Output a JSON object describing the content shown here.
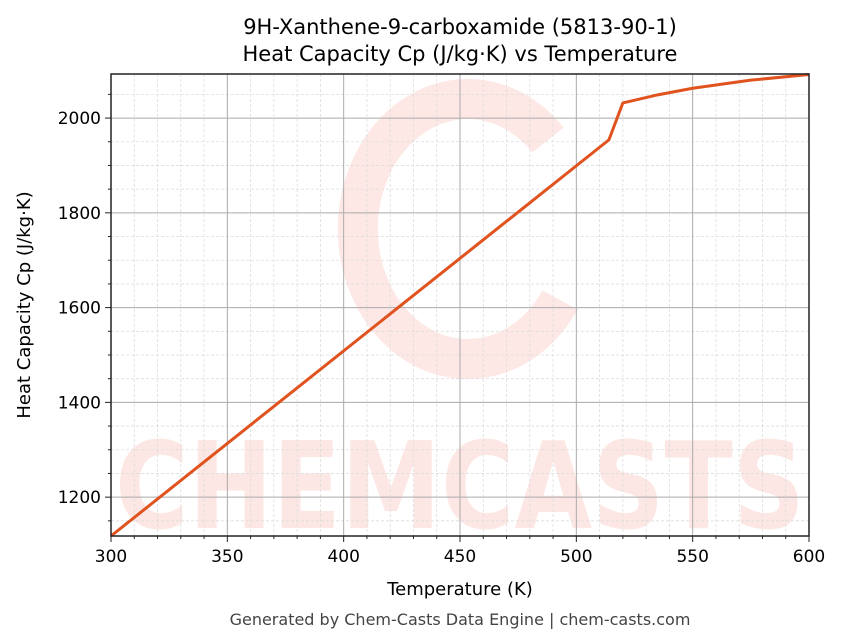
{
  "chart_data": {
    "type": "line",
    "title": "9H-Xanthene-9-carboxamide (5813-90-1)",
    "subtitle": "Heat Capacity Cp (J/kg·K) vs Temperature",
    "xlabel": "Temperature (K)",
    "ylabel": "Heat Capacity Cp (J/kg·K)",
    "xlim": [
      300,
      600
    ],
    "ylim": [
      1118,
      2093
    ],
    "xticks": [
      300,
      350,
      400,
      450,
      500,
      550,
      600
    ],
    "yticks": [
      1200,
      1400,
      1600,
      1800,
      2000
    ],
    "grid": true,
    "series": [
      {
        "name": "Cp",
        "color": "#e0531f",
        "x": [
          300,
          514,
          520,
          535,
          550,
          575,
          600
        ],
        "y": [
          1118,
          1954,
          2032,
          2049,
          2063,
          2080,
          2092
        ]
      }
    ],
    "watermark": "CHEMCASTS",
    "footer": "Generated by Chem-Casts Data Engine | chem-casts.com"
  }
}
